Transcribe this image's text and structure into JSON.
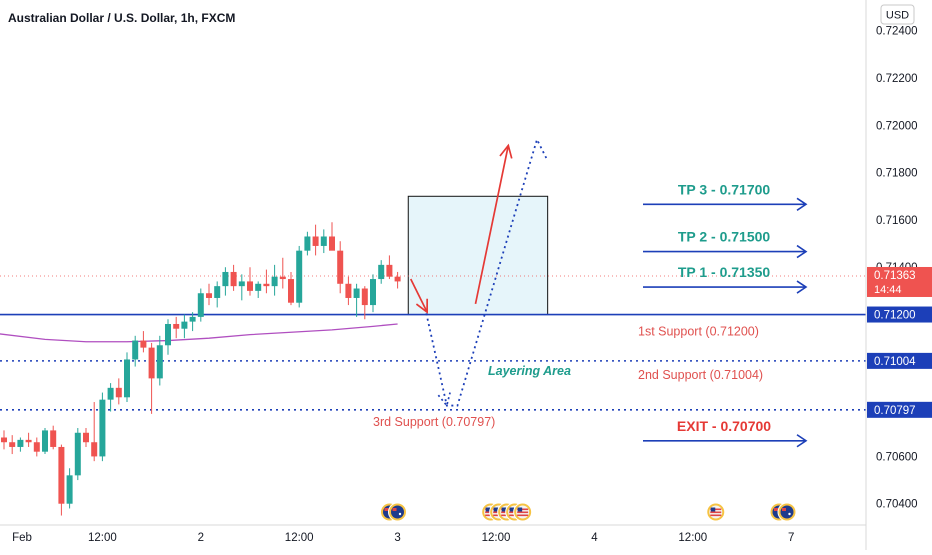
{
  "chart_data": {
    "type": "candlestick",
    "title": "Australian Dollar / U.S. Dollar, 1h, FXCM",
    "currency": "USD",
    "ylim": [
      0.7031,
      0.7253
    ],
    "y_ticks": [
      "0.72400",
      "0.72200",
      "0.72000",
      "0.71800",
      "0.71600",
      "0.71400",
      "0.70600",
      "0.70400"
    ],
    "y_tick_values": [
      0.724,
      0.722,
      0.72,
      0.718,
      0.716,
      0.714,
      0.706,
      0.704
    ],
    "x_ticks": [
      {
        "label": "Feb",
        "index": 0
      },
      {
        "label": "12:00",
        "index": 12
      },
      {
        "label": "2",
        "index": 24
      },
      {
        "label": "12:00",
        "index": 36
      },
      {
        "label": "3",
        "index": 48
      },
      {
        "label": "12:00",
        "index": 60
      },
      {
        "label": "4",
        "index": 72
      },
      {
        "label": "12:00",
        "index": 84
      },
      {
        "label": "7",
        "index": 96
      }
    ],
    "colors": {
      "up": "#26a69a",
      "down": "#ef5350",
      "support": "#1c3fb8",
      "exit": "#e53935",
      "tp": "#1e9c8c",
      "ma": "#b04fc0",
      "zone_up": "#e6f5fa",
      "zone_down": "#fcefef"
    },
    "current_price": {
      "value": 0.71363,
      "label": "0.71363",
      "countdown": "14:44"
    },
    "moving_average": [
      [
        -1,
        0.7112
      ],
      [
        5,
        0.71095
      ],
      [
        10,
        0.71085
      ],
      [
        15,
        0.71085
      ],
      [
        20,
        0.7109
      ],
      [
        25,
        0.711
      ],
      [
        30,
        0.71115
      ],
      [
        35,
        0.71125
      ],
      [
        40,
        0.71135
      ],
      [
        45,
        0.7115
      ],
      [
        48,
        0.7116
      ]
    ],
    "candles": [
      [
        0.7068,
        0.7071,
        0.7063,
        0.7066
      ],
      [
        0.7066,
        0.7069,
        0.7061,
        0.7064
      ],
      [
        0.7064,
        0.7068,
        0.7062,
        0.7067
      ],
      [
        0.7067,
        0.707,
        0.7064,
        0.7066
      ],
      [
        0.7066,
        0.7068,
        0.706,
        0.7062
      ],
      [
        0.7062,
        0.7072,
        0.7061,
        0.7071
      ],
      [
        0.7071,
        0.7073,
        0.7063,
        0.7064
      ],
      [
        0.7064,
        0.7065,
        0.7035,
        0.704
      ],
      [
        0.704,
        0.7055,
        0.7038,
        0.7052
      ],
      [
        0.7052,
        0.7072,
        0.705,
        0.707
      ],
      [
        0.707,
        0.7072,
        0.7064,
        0.7066
      ],
      [
        0.7066,
        0.7083,
        0.7058,
        0.706
      ],
      [
        0.706,
        0.7087,
        0.7058,
        0.7084
      ],
      [
        0.7084,
        0.7091,
        0.7079,
        0.7089
      ],
      [
        0.7089,
        0.7093,
        0.7082,
        0.7085
      ],
      [
        0.7085,
        0.7104,
        0.7083,
        0.7101
      ],
      [
        0.7101,
        0.7111,
        0.7098,
        0.7109
      ],
      [
        0.7109,
        0.7113,
        0.7104,
        0.7106
      ],
      [
        0.7106,
        0.7108,
        0.7078,
        0.7093
      ],
      [
        0.7093,
        0.7111,
        0.709,
        0.7107
      ],
      [
        0.7107,
        0.7118,
        0.7103,
        0.7116
      ],
      [
        0.7116,
        0.7119,
        0.711,
        0.7114
      ],
      [
        0.7114,
        0.712,
        0.711,
        0.7117
      ],
      [
        0.7117,
        0.7121,
        0.7113,
        0.7119
      ],
      [
        0.7119,
        0.7131,
        0.7117,
        0.7129
      ],
      [
        0.7129,
        0.7133,
        0.7124,
        0.7127
      ],
      [
        0.7127,
        0.7134,
        0.7123,
        0.7132
      ],
      [
        0.7132,
        0.714,
        0.7128,
        0.7138
      ],
      [
        0.7138,
        0.7141,
        0.713,
        0.7132
      ],
      [
        0.7132,
        0.7137,
        0.7126,
        0.7134
      ],
      [
        0.7134,
        0.714,
        0.7128,
        0.713
      ],
      [
        0.713,
        0.7134,
        0.7127,
        0.7133
      ],
      [
        0.7133,
        0.7139,
        0.7129,
        0.7132
      ],
      [
        0.7132,
        0.7141,
        0.7128,
        0.7136
      ],
      [
        0.7136,
        0.7144,
        0.7131,
        0.7135
      ],
      [
        0.7135,
        0.7138,
        0.7124,
        0.7125
      ],
      [
        0.7125,
        0.7149,
        0.7123,
        0.7147
      ],
      [
        0.7147,
        0.7155,
        0.7145,
        0.7153
      ],
      [
        0.7153,
        0.7158,
        0.7145,
        0.7149
      ],
      [
        0.7149,
        0.7156,
        0.7146,
        0.7153
      ],
      [
        0.7153,
        0.7159,
        0.7148,
        0.7147
      ],
      [
        0.7147,
        0.7151,
        0.7129,
        0.7133
      ],
      [
        0.7133,
        0.7136,
        0.7124,
        0.7127
      ],
      [
        0.7127,
        0.7133,
        0.7119,
        0.7131
      ],
      [
        0.7131,
        0.7132,
        0.7118,
        0.7124
      ],
      [
        0.7124,
        0.7137,
        0.7121,
        0.7135
      ],
      [
        0.7135,
        0.7143,
        0.7133,
        0.7141
      ],
      [
        0.7141,
        0.7145,
        0.7135,
        0.7136
      ],
      [
        0.7136,
        0.7138,
        0.7131,
        0.7134
      ]
    ],
    "zones": {
      "upper": {
        "from_index": 49.3,
        "to_index": 66.3,
        "from": 0.712,
        "to": 0.717
      },
      "lower": {
        "from_index": 49.3,
        "to_index": 66.3,
        "from": 0.70797,
        "to": 0.712
      }
    },
    "levels": [
      {
        "name": "1st Support (0.71200)",
        "value": 0.712,
        "badge": "0.71200",
        "style": "solid",
        "color": "#1c3fb8"
      },
      {
        "name": "2nd Support (0.71004)",
        "value": 0.71004,
        "badge": "0.71004",
        "style": "dotted",
        "color": "#1c3fb8"
      },
      {
        "name": "3rd Support (0.70797)",
        "value": 0.70797,
        "badge": "0.70797",
        "style": "dotted",
        "color": "#1c3fb8"
      }
    ],
    "targets": [
      {
        "label": "TP 3 - 0.71700",
        "value": 0.717,
        "color": "#1e9c8c"
      },
      {
        "label": "TP 2 - 0.71500",
        "value": 0.715,
        "color": "#1e9c8c"
      },
      {
        "label": "TP 1 - 0.71350",
        "value": 0.7135,
        "color": "#1e9c8c"
      },
      {
        "label": "EXIT - 0.70700",
        "value": 0.707,
        "color": "#e53935"
      }
    ],
    "annotations": {
      "layering": "Layering Area"
    },
    "paths": {
      "red_solid_up": [
        [
          57.5,
          0.71245
        ],
        [
          61.5,
          0.71915
        ]
      ],
      "red_solid_head": [
        [
          49.6,
          0.7135
        ],
        [
          51.6,
          0.7121
        ]
      ],
      "blue_dotted": [
        [
          51.5,
          0.71205
        ],
        [
          54.0,
          0.70815
        ],
        [
          55.3,
          0.70815
        ],
        [
          65.0,
          0.7194
        ],
        [
          66.3,
          0.7185
        ]
      ]
    },
    "event_icons": [
      {
        "index": 47.5,
        "flags": [
          "au",
          "au"
        ]
      },
      {
        "index": 61.3,
        "flags": [
          "us",
          "us",
          "us",
          "us",
          "us"
        ]
      },
      {
        "index": 86.8,
        "flags": [
          "us"
        ]
      },
      {
        "index": 95.0,
        "flags": [
          "au",
          "au"
        ]
      }
    ]
  }
}
